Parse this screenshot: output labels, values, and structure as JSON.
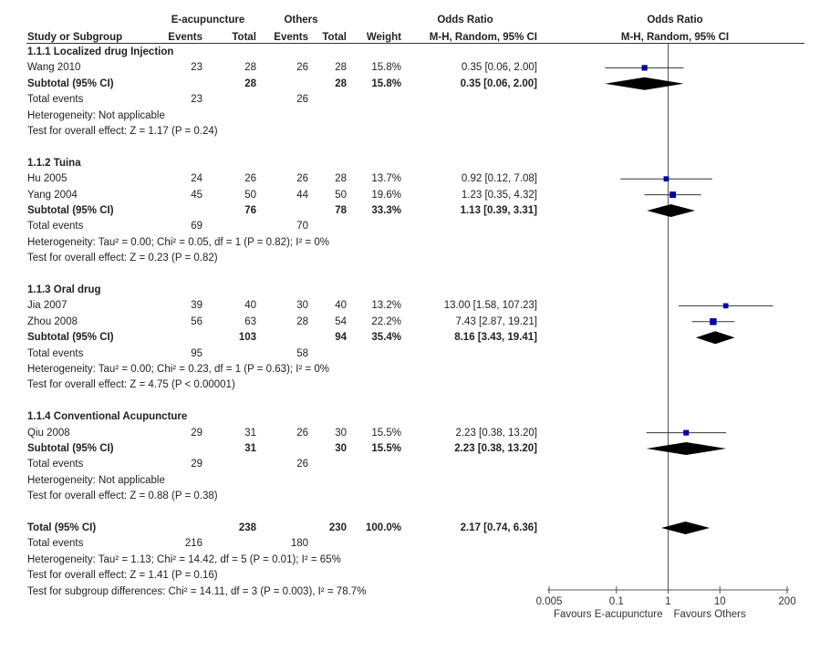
{
  "header": {
    "group1": "E-acupuncture",
    "group2": "Others",
    "or_col_title": "Odds Ratio",
    "or_col_sub": "M-H, Random, 95% CI",
    "plot_title": "Odds Ratio",
    "plot_sub": "M-H, Random, 95% CI",
    "study": "Study or Subgroup",
    "events1": "Events",
    "total1": "Total",
    "events2": "Events",
    "total2": "Total",
    "weight": "Weight"
  },
  "subgroups": [
    {
      "title": "1.1.1 Localized drug Injection",
      "studies": [
        {
          "name": "Wang 2010",
          "e1": "23",
          "t1": "28",
          "e2": "26",
          "t2": "28",
          "weight": "15.8%",
          "ci_text": "0.35 [0.06, 2.00]"
        }
      ],
      "subtotal": {
        "label": "Subtotal (95% CI)",
        "t1": "28",
        "t2": "28",
        "weight": "15.8%",
        "ci_text": "0.35 [0.06, 2.00]"
      },
      "total_events": {
        "label": "Total events",
        "e1": "23",
        "e2": "26"
      },
      "heterogeneity": "Heterogeneity: Not applicable",
      "overall": "Test for overall effect: Z = 1.17 (P = 0.24)"
    },
    {
      "title": "1.1.2 Tuina",
      "studies": [
        {
          "name": "Hu 2005",
          "e1": "24",
          "t1": "26",
          "e2": "26",
          "t2": "28",
          "weight": "13.7%",
          "ci_text": "0.92 [0.12, 7.08]"
        },
        {
          "name": "Yang 2004",
          "e1": "45",
          "t1": "50",
          "e2": "44",
          "t2": "50",
          "weight": "19.6%",
          "ci_text": "1.23 [0.35, 4.32]"
        }
      ],
      "subtotal": {
        "label": "Subtotal (95% CI)",
        "t1": "76",
        "t2": "78",
        "weight": "33.3%",
        "ci_text": "1.13 [0.39, 3.31]"
      },
      "total_events": {
        "label": "Total events",
        "e1": "69",
        "e2": "70"
      },
      "heterogeneity": "Heterogeneity: Tau² = 0.00; Chi² = 0.05, df = 1 (P = 0.82); I² = 0%",
      "overall": "Test for overall effect: Z = 0.23 (P = 0.82)"
    },
    {
      "title": "1.1.3 Oral drug",
      "studies": [
        {
          "name": "Jia 2007",
          "e1": "39",
          "t1": "40",
          "e2": "30",
          "t2": "40",
          "weight": "13.2%",
          "ci_text": "13.00 [1.58, 107.23]"
        },
        {
          "name": "Zhou 2008",
          "e1": "56",
          "t1": "63",
          "e2": "28",
          "t2": "54",
          "weight": "22.2%",
          "ci_text": "7.43 [2.87, 19.21]"
        }
      ],
      "subtotal": {
        "label": "Subtotal (95% CI)",
        "t1": "103",
        "t2": "94",
        "weight": "35.4%",
        "ci_text": "8.16 [3.43, 19.41]"
      },
      "total_events": {
        "label": "Total events",
        "e1": "95",
        "e2": "58"
      },
      "heterogeneity": "Heterogeneity: Tau² = 0.00; Chi² = 0.23, df = 1 (P = 0.63); I² = 0%",
      "overall": "Test for overall effect: Z = 4.75 (P < 0.00001)"
    },
    {
      "title": "1.1.4 Conventional Acupuncture",
      "studies": [
        {
          "name": "Qiu 2008",
          "e1": "29",
          "t1": "31",
          "e2": "26",
          "t2": "30",
          "weight": "15.5%",
          "ci_text": "2.23 [0.38, 13.20]"
        }
      ],
      "subtotal": {
        "label": "Subtotal (95% CI)",
        "t1": "31",
        "t2": "30",
        "weight": "15.5%",
        "ci_text": "2.23 [0.38, 13.20]"
      },
      "total_events": {
        "label": "Total events",
        "e1": "29",
        "e2": "26"
      },
      "heterogeneity": "Heterogeneity: Not applicable",
      "overall": "Test for overall effect: Z = 0.88 (P = 0.38)"
    }
  ],
  "total": {
    "label": "Total (95% CI)",
    "t1": "238",
    "t2": "230",
    "weight": "100.0%",
    "ci_text": "2.17 [0.74, 6.36]",
    "events_label": "Total events",
    "e1": "216",
    "e2": "180",
    "heterogeneity": "Heterogeneity: Tau² = 1.13; Chi² = 14.42, df = 5 (P = 0.01); I² = 65%",
    "overall": "Test for overall effect: Z = 1.41 (P = 0.16)",
    "subgroup_diff": "Test for subgroup differences: Chi² = 14.11, df = 3 (P = 0.003), I² = 78.7%"
  },
  "axis": {
    "ticks": [
      "0.005",
      "0.1",
      "1",
      "10",
      "200"
    ],
    "left_label": "Favours E-acupuncture",
    "right_label": "Favours Others"
  },
  "colors": {
    "study_marker": "#0000a0",
    "diamond": "#000000",
    "lines": "#555555"
  },
  "chart_data": {
    "type": "forest",
    "title": "Odds Ratio M-H, Random, 95% CI",
    "scale": "log",
    "xlim": [
      0.005,
      200
    ],
    "x_ticks": [
      0.005,
      0.1,
      1,
      10,
      200
    ],
    "reference_line": 1,
    "xlabel_left": "Favours E-acupuncture",
    "xlabel_right": "Favours Others",
    "studies": [
      {
        "name": "Wang 2010",
        "subgroup": "1.1.1",
        "or": 0.35,
        "lo": 0.06,
        "hi": 2.0,
        "weight": 15.8
      },
      {
        "name": "Hu 2005",
        "subgroup": "1.1.2",
        "or": 0.92,
        "lo": 0.12,
        "hi": 7.08,
        "weight": 13.7
      },
      {
        "name": "Yang 2004",
        "subgroup": "1.1.2",
        "or": 1.23,
        "lo": 0.35,
        "hi": 4.32,
        "weight": 19.6
      },
      {
        "name": "Jia 2007",
        "subgroup": "1.1.3",
        "or": 13.0,
        "lo": 1.58,
        "hi": 107.23,
        "weight": 13.2
      },
      {
        "name": "Zhou 2008",
        "subgroup": "1.1.3",
        "or": 7.43,
        "lo": 2.87,
        "hi": 19.21,
        "weight": 22.2
      },
      {
        "name": "Qiu 2008",
        "subgroup": "1.1.4",
        "or": 2.23,
        "lo": 0.38,
        "hi": 13.2,
        "weight": 15.5
      }
    ],
    "subtotals": [
      {
        "subgroup": "1.1.1",
        "or": 0.35,
        "lo": 0.06,
        "hi": 2.0
      },
      {
        "subgroup": "1.1.2",
        "or": 1.13,
        "lo": 0.39,
        "hi": 3.31
      },
      {
        "subgroup": "1.1.3",
        "or": 8.16,
        "lo": 3.43,
        "hi": 19.41
      },
      {
        "subgroup": "1.1.4",
        "or": 2.23,
        "lo": 0.38,
        "hi": 13.2
      }
    ],
    "overall": {
      "or": 2.17,
      "lo": 0.74,
      "hi": 6.36
    }
  }
}
